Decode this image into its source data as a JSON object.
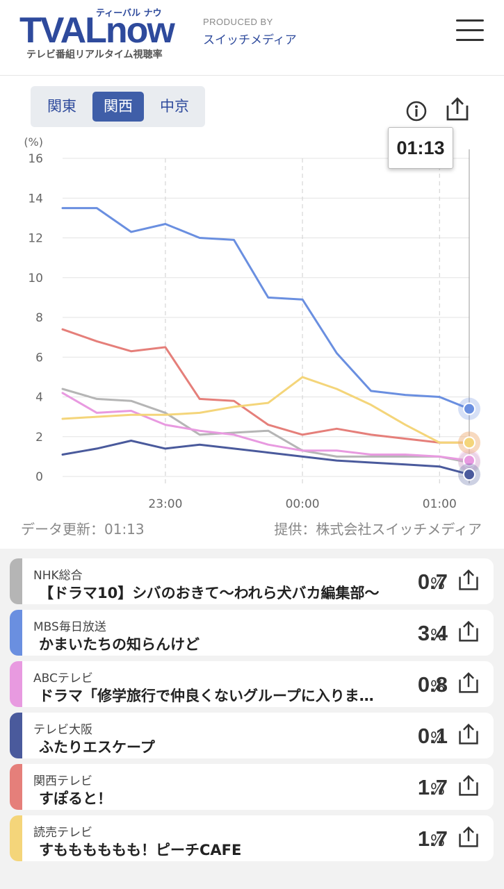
{
  "header": {
    "logo_text": "TVALnow",
    "logo_kana": "ティーバル ナウ",
    "logo_subtitle": "テレビ番組リアルタイム視聴率",
    "produced_by_label": "PRODUCED BY",
    "produced_by_name": "スイッチメディア",
    "menu_icon": "hamburger-menu-icon"
  },
  "regions": {
    "tabs": [
      "関東",
      "関西",
      "中京"
    ],
    "selected": "関西"
  },
  "toolbar": {
    "info_icon": "info-icon",
    "share_icon": "share-icon"
  },
  "tooltip_time": "01:13",
  "chart_data": {
    "type": "line",
    "ylabel": "(%)",
    "ylim": [
      0,
      16
    ],
    "yticks": [
      0,
      2,
      4,
      6,
      8,
      10,
      12,
      14,
      16
    ],
    "xlim": [
      "22:15",
      "01:13"
    ],
    "xticks": [
      "23:00",
      "00:00",
      "01:00"
    ],
    "grid": true,
    "x": [
      "22:15",
      "22:30",
      "22:45",
      "23:00",
      "23:15",
      "23:30",
      "23:45",
      "00:00",
      "00:15",
      "00:30",
      "00:45",
      "01:00",
      "01:13"
    ],
    "series": [
      {
        "name": "MBS毎日放送",
        "color": "#6a8fe0",
        "values": [
          13.5,
          13.5,
          12.3,
          12.7,
          12.0,
          11.9,
          9.0,
          8.9,
          6.2,
          4.3,
          4.1,
          4.0,
          3.4
        ]
      },
      {
        "name": "関西テレビ",
        "color": "#e57f7a",
        "values": [
          7.4,
          6.8,
          6.3,
          6.5,
          3.9,
          3.8,
          2.6,
          2.1,
          2.4,
          2.1,
          1.9,
          1.7,
          1.7
        ]
      },
      {
        "name": "NHK総合",
        "color": "#b5b5b5",
        "values": [
          4.4,
          3.9,
          3.8,
          3.2,
          2.1,
          2.2,
          2.3,
          1.3,
          1.0,
          1.0,
          1.0,
          1.0,
          0.7
        ]
      },
      {
        "name": "ABCテレビ",
        "color": "#e89ae0",
        "values": [
          4.2,
          3.2,
          3.3,
          2.6,
          2.3,
          2.1,
          1.6,
          1.3,
          1.3,
          1.1,
          1.1,
          1.0,
          0.8
        ]
      },
      {
        "name": "読売テレビ",
        "color": "#f4d57a",
        "values": [
          2.9,
          3.0,
          3.1,
          3.1,
          3.2,
          3.5,
          3.7,
          5.0,
          4.4,
          3.6,
          2.6,
          1.7,
          1.7
        ]
      },
      {
        "name": "テレビ大阪",
        "color": "#4a5a9c",
        "values": [
          1.1,
          1.4,
          1.8,
          1.4,
          1.6,
          1.4,
          1.2,
          1.0,
          0.8,
          0.7,
          0.6,
          0.5,
          0.1
        ]
      }
    ]
  },
  "footer": {
    "updated": "データ更新：01:13",
    "provider": "提供：株式会社スイッチメディア"
  },
  "channels": [
    {
      "channel": "NHK総合",
      "program": "【ドラマ10】シバのおきて～われら犬バカ編集部～",
      "rating": "0.7",
      "unit": "%",
      "color": "#b5b5b5"
    },
    {
      "channel": "MBS毎日放送",
      "program": "かまいたちの知らんけど",
      "rating": "3.4",
      "unit": "%",
      "color": "#6a8fe0"
    },
    {
      "channel": "ABCテレビ",
      "program": "ドラマ「修学旅行で仲良くないグループに入りました」",
      "rating": "0.8",
      "unit": "%",
      "color": "#e89ae0"
    },
    {
      "channel": "テレビ大阪",
      "program": "ふたりエスケープ",
      "rating": "0.1",
      "unit": "%",
      "color": "#4a5a9c"
    },
    {
      "channel": "関西テレビ",
      "program": "すぽると！",
      "rating": "1.7",
      "unit": "%",
      "color": "#e57f7a"
    },
    {
      "channel": "読売テレビ",
      "program": "すもももももも！ピーチCAFE",
      "rating": "1.7",
      "unit": "%",
      "color": "#f4d57a"
    }
  ]
}
